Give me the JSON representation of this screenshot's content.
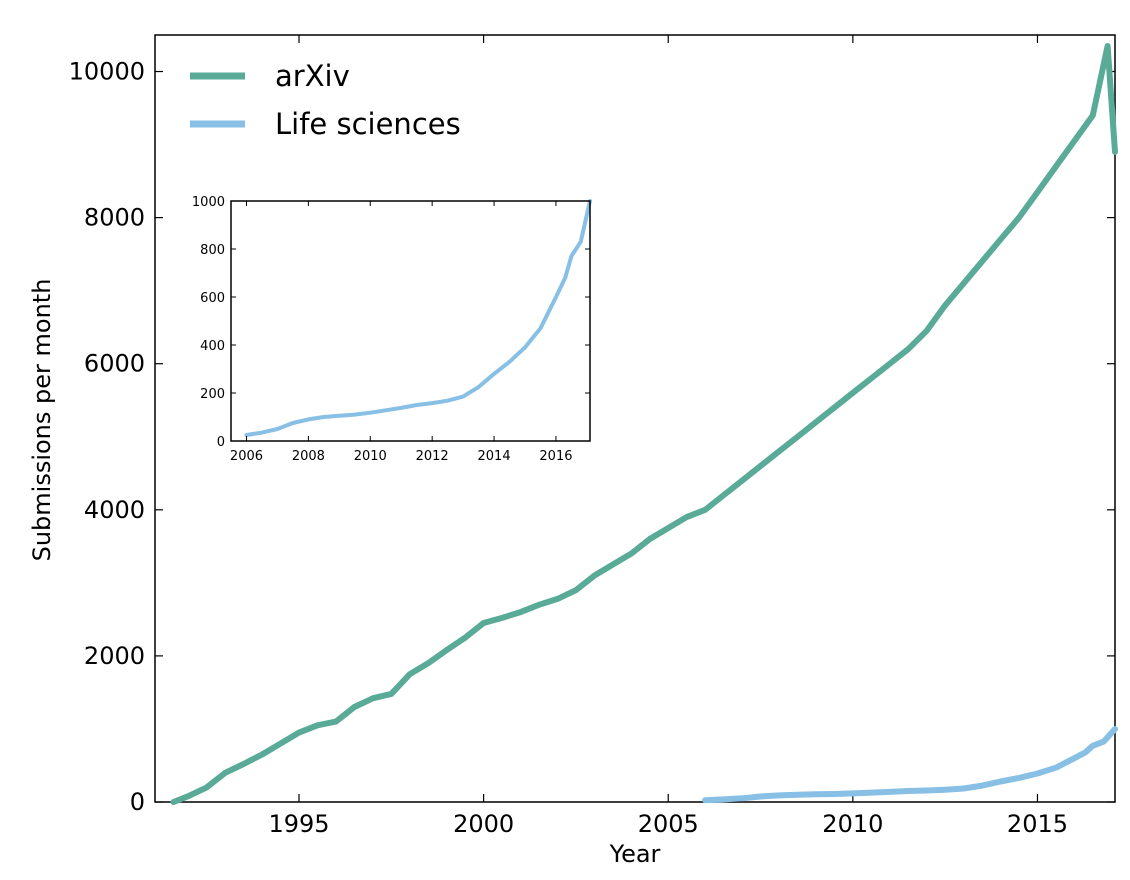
{
  "chart_data": {
    "type": "line",
    "xlabel": "Year",
    "ylabel": "Submissions per month",
    "xlim": [
      1991.1,
      2017.1
    ],
    "ylim": [
      0,
      10500
    ],
    "xticks": [
      1995,
      2000,
      2005,
      2010,
      2015
    ],
    "xtick_labels": [
      "1995",
      "2000",
      "2005",
      "2010",
      "2015"
    ],
    "yticks": [
      0,
      2000,
      4000,
      6000,
      8000,
      10000
    ],
    "ytick_labels": [
      "0",
      "2000",
      "4000",
      "6000",
      "8000",
      "10000"
    ],
    "legend": {
      "placement": "top-left",
      "entries": [
        "arXiv",
        "Life sciences"
      ]
    },
    "series": [
      {
        "name": "arXiv",
        "color": "#5aaa98",
        "points": [
          [
            1991.6,
            0
          ],
          [
            1992.0,
            80
          ],
          [
            1992.5,
            200
          ],
          [
            1993.0,
            400
          ],
          [
            1993.5,
            520
          ],
          [
            1994.0,
            650
          ],
          [
            1994.5,
            800
          ],
          [
            1995.0,
            950
          ],
          [
            1995.5,
            1050
          ],
          [
            1996.0,
            1100
          ],
          [
            1996.5,
            1300
          ],
          [
            1997.0,
            1420
          ],
          [
            1997.5,
            1480
          ],
          [
            1998.0,
            1750
          ],
          [
            1998.5,
            1900
          ],
          [
            1999.0,
            2080
          ],
          [
            1999.5,
            2250
          ],
          [
            2000.0,
            2450
          ],
          [
            2000.5,
            2520
          ],
          [
            2001.0,
            2600
          ],
          [
            2001.5,
            2700
          ],
          [
            2002.0,
            2780
          ],
          [
            2002.5,
            2900
          ],
          [
            2003.0,
            3100
          ],
          [
            2003.5,
            3250
          ],
          [
            2004.0,
            3400
          ],
          [
            2004.5,
            3600
          ],
          [
            2005.0,
            3750
          ],
          [
            2005.5,
            3900
          ],
          [
            2006.0,
            4000
          ],
          [
            2006.5,
            4200
          ],
          [
            2007.0,
            4400
          ],
          [
            2007.5,
            4600
          ],
          [
            2008.0,
            4800
          ],
          [
            2008.5,
            5000
          ],
          [
            2009.0,
            5200
          ],
          [
            2009.5,
            5400
          ],
          [
            2010.0,
            5600
          ],
          [
            2010.5,
            5800
          ],
          [
            2011.0,
            6000
          ],
          [
            2011.5,
            6200
          ],
          [
            2012.0,
            6450
          ],
          [
            2012.5,
            6800
          ],
          [
            2013.0,
            7100
          ],
          [
            2013.5,
            7400
          ],
          [
            2014.0,
            7700
          ],
          [
            2014.5,
            8000
          ],
          [
            2015.0,
            8350
          ],
          [
            2015.5,
            8700
          ],
          [
            2016.0,
            9050
          ],
          [
            2016.5,
            9400
          ],
          [
            2016.9,
            10350
          ],
          [
            2017.1,
            8900
          ]
        ]
      },
      {
        "name": "Life sciences",
        "color": "#87bfe5",
        "points": [
          [
            2006.0,
            25
          ],
          [
            2006.5,
            35
          ],
          [
            2007.0,
            50
          ],
          [
            2007.5,
            75
          ],
          [
            2008.0,
            90
          ],
          [
            2008.5,
            100
          ],
          [
            2009.0,
            105
          ],
          [
            2009.5,
            110
          ],
          [
            2010.0,
            118
          ],
          [
            2010.5,
            128
          ],
          [
            2011.0,
            138
          ],
          [
            2011.5,
            150
          ],
          [
            2012.0,
            158
          ],
          [
            2012.5,
            168
          ],
          [
            2013.0,
            185
          ],
          [
            2013.5,
            225
          ],
          [
            2014.0,
            280
          ],
          [
            2014.5,
            330
          ],
          [
            2015.0,
            390
          ],
          [
            2015.5,
            470
          ],
          [
            2016.0,
            600
          ],
          [
            2016.3,
            680
          ],
          [
            2016.5,
            770
          ],
          [
            2016.8,
            830
          ],
          [
            2017.1,
            1000
          ]
        ]
      }
    ],
    "inset": {
      "type": "line",
      "series_name": "Life sciences",
      "xlim": [
        2005.5,
        2017.1
      ],
      "ylim": [
        0,
        1000
      ],
      "xticks": [
        2006,
        2008,
        2010,
        2012,
        2014,
        2016
      ],
      "xtick_labels": [
        "2006",
        "2008",
        "2010",
        "2012",
        "2014",
        "2016"
      ],
      "yticks": [
        0,
        200,
        400,
        600,
        800,
        1000
      ],
      "ytick_labels": [
        "0",
        "200",
        "400",
        "600",
        "800",
        "1000"
      ]
    }
  }
}
